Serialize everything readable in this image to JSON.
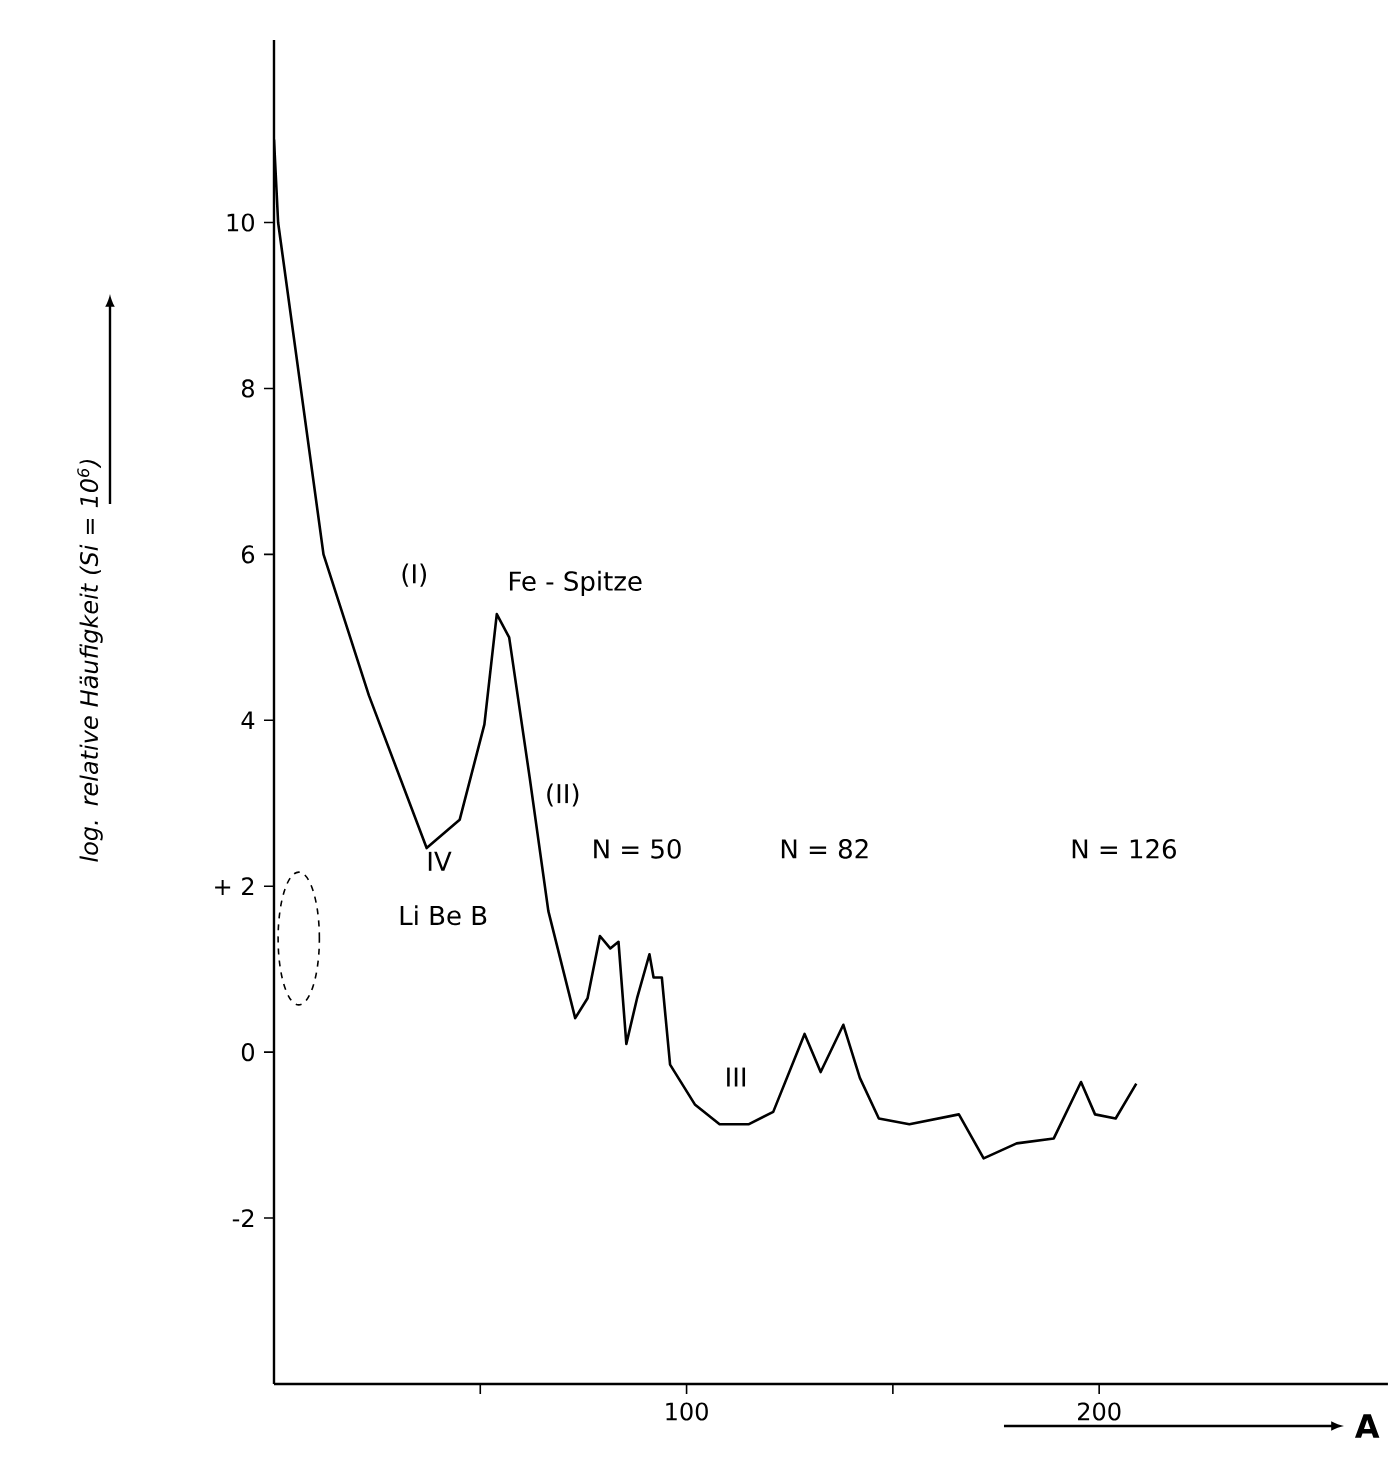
{
  "chart_data": {
    "type": "line",
    "ylabel": "log. relative Häufigkeit (Si = 10$^{6}$)",
    "xlabel": "A",
    "x": [
      0,
      1,
      12,
      23,
      37,
      45,
      51,
      54,
      57,
      62,
      66.5,
      73,
      76,
      79,
      81.5,
      83.5,
      85.4,
      88,
      91,
      92,
      94,
      96,
      102,
      108,
      115,
      121,
      128.6,
      132.5,
      138,
      142,
      146.6,
      154,
      166,
      172,
      180,
      189,
      195.6,
      199,
      204,
      209
    ],
    "series": [
      {
        "color": "#000000",
        "values": [
          11.0,
          10.0,
          6.0,
          4.3,
          2.46,
          2.8,
          3.95,
          5.28,
          5.0,
          3.3,
          1.7,
          0.41,
          0.65,
          1.4,
          1.25,
          1.33,
          0.1,
          0.65,
          1.18,
          0.9,
          0.9,
          -0.15,
          -0.63,
          -0.87,
          -0.87,
          -0.72,
          0.22,
          -0.24,
          0.33,
          -0.31,
          -0.8,
          -0.87,
          -0.75,
          -1.28,
          -1.1,
          -1.04,
          -0.36,
          -0.75,
          -0.8,
          -0.38
        ]
      }
    ],
    "xlim": [
      0,
      270
    ],
    "ylim": [
      -4,
      12.2
    ],
    "xticks": [
      {
        "value": 50,
        "label": null
      },
      100,
      {
        "value": 150,
        "label": null
      },
      200
    ],
    "yticks": [
      -2,
      0,
      {
        "value": 2,
        "label": "+ 2"
      },
      4,
      6,
      8,
      10
    ],
    "marker": "none",
    "line_style": "solid",
    "annotations": [
      "Fe - Spitze",
      "(I)",
      "(II)",
      "N = 50",
      "N = 82",
      "N = 126",
      "III",
      "IV",
      "Li Be B"
    ]
  }
}
